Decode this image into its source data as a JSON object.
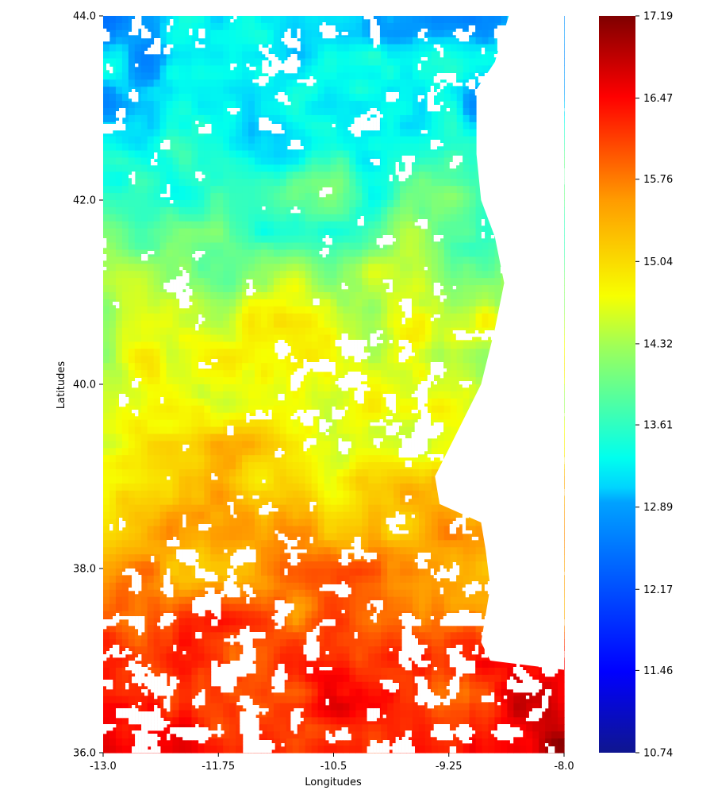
{
  "chart_data": {
    "type": "heatmap",
    "title": "",
    "xlabel": "Longitudes",
    "ylabel": "Latitudes",
    "xlim": [
      -13.0,
      -8.0
    ],
    "ylim": [
      36.0,
      44.0
    ],
    "x_ticks": [
      -13.0,
      -11.75,
      -10.5,
      -9.25,
      -8.0
    ],
    "x_tick_labels": [
      "-13.0",
      "-11.75",
      "-10.5",
      "-9.25",
      "-8.0"
    ],
    "y_ticks": [
      36.0,
      38.0,
      40.0,
      42.0,
      44.0
    ],
    "y_tick_labels": [
      "36.0",
      "38.0",
      "40.0",
      "42.0",
      "44.0"
    ],
    "colormap": "jet",
    "colorbar": {
      "vmin": 10.74,
      "vmax": 17.19,
      "ticks": [
        10.74,
        11.46,
        12.17,
        12.89,
        13.61,
        14.32,
        15.04,
        15.76,
        16.47,
        17.19
      ],
      "tick_labels": [
        "10.74",
        "11.46",
        "12.17",
        "12.89",
        "13.61",
        "14.32",
        "15.04",
        "15.76",
        "16.47",
        "17.19"
      ]
    },
    "missing_color": "#ffffff",
    "latitude_profile": [
      {
        "lat": 44.0,
        "value": 13.0
      },
      {
        "lat": 43.0,
        "value": 13.1
      },
      {
        "lat": 42.2,
        "value": 13.7
      },
      {
        "lat": 41.5,
        "value": 14.0
      },
      {
        "lat": 40.6,
        "value": 14.5
      },
      {
        "lat": 40.0,
        "value": 14.7
      },
      {
        "lat": 39.2,
        "value": 15.0
      },
      {
        "lat": 38.5,
        "value": 15.4
      },
      {
        "lat": 37.8,
        "value": 15.7
      },
      {
        "lat": 37.0,
        "value": 16.1
      },
      {
        "lat": 36.0,
        "value": 16.5
      }
    ]
  }
}
